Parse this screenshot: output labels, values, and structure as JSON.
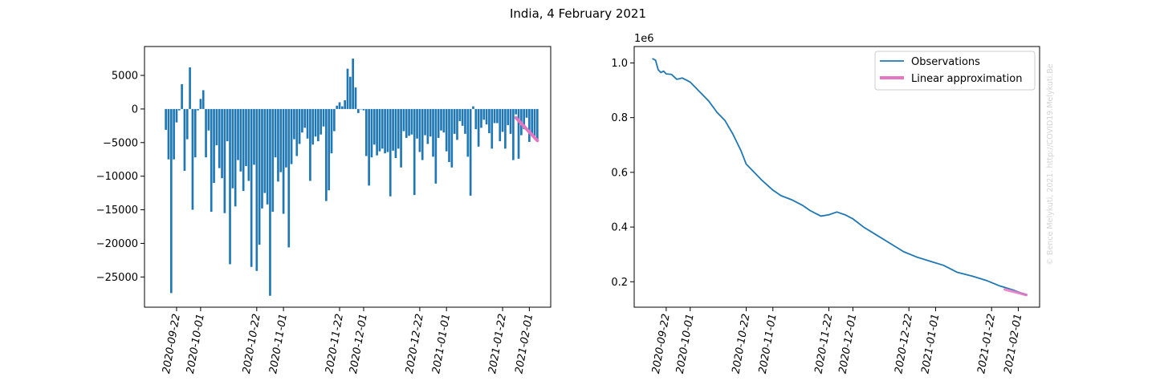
{
  "figure": {
    "title": "India, 4 February 2021",
    "watermark": "© Bence Melykuti, 2021. http://COVID19.Melykuti.Be",
    "watermark_color": "#d3d3d3"
  },
  "chart_data": [
    {
      "type": "bar",
      "title": "",
      "xlabel": "",
      "ylabel": "",
      "x_ticks": [
        "2020-09-22",
        "2020-10-01",
        "2020-10-22",
        "2020-11-01",
        "2020-11-22",
        "2020-12-01",
        "2020-12-22",
        "2021-01-01",
        "2021-01-22",
        "2021-02-01"
      ],
      "y_ticks": [
        "5000",
        "0",
        "−5000",
        "−10000",
        "−15000",
        "−20000",
        "−25000"
      ],
      "xlim": [
        "2020-09-10",
        "2021-02-09"
      ],
      "ylim": [
        -29500,
        9300
      ],
      "grid": false,
      "bar_color": "#1f77b4",
      "dates": [
        "2020-09-18",
        "2020-09-19",
        "2020-09-20",
        "2020-09-21",
        "2020-09-22",
        "2020-09-23",
        "2020-09-24",
        "2020-09-25",
        "2020-09-26",
        "2020-09-27",
        "2020-09-28",
        "2020-09-29",
        "2020-09-30",
        "2020-10-01",
        "2020-10-02",
        "2020-10-03",
        "2020-10-04",
        "2020-10-05",
        "2020-10-06",
        "2020-10-07",
        "2020-10-08",
        "2020-10-09",
        "2020-10-10",
        "2020-10-11",
        "2020-10-12",
        "2020-10-13",
        "2020-10-14",
        "2020-10-15",
        "2020-10-16",
        "2020-10-17",
        "2020-10-18",
        "2020-10-19",
        "2020-10-20",
        "2020-10-21",
        "2020-10-22",
        "2020-10-23",
        "2020-10-24",
        "2020-10-25",
        "2020-10-26",
        "2020-10-27",
        "2020-10-28",
        "2020-10-29",
        "2020-10-30",
        "2020-10-31",
        "2020-11-01",
        "2020-11-02",
        "2020-11-03",
        "2020-11-04",
        "2020-11-05",
        "2020-11-06",
        "2020-11-07",
        "2020-11-08",
        "2020-11-09",
        "2020-11-10",
        "2020-11-11",
        "2020-11-12",
        "2020-11-13",
        "2020-11-14",
        "2020-11-15",
        "2020-11-16",
        "2020-11-17",
        "2020-11-18",
        "2020-11-19",
        "2020-11-20",
        "2020-11-21",
        "2020-11-22",
        "2020-11-23",
        "2020-11-24",
        "2020-11-25",
        "2020-11-26",
        "2020-11-27",
        "2020-11-28",
        "2020-11-29",
        "2020-11-30",
        "2020-12-01",
        "2020-12-02",
        "2020-12-03",
        "2020-12-04",
        "2020-12-05",
        "2020-12-06",
        "2020-12-07",
        "2020-12-08",
        "2020-12-09",
        "2020-12-10",
        "2020-12-11",
        "2020-12-12",
        "2020-12-13",
        "2020-12-14",
        "2020-12-15",
        "2020-12-16",
        "2020-12-17",
        "2020-12-18",
        "2020-12-19",
        "2020-12-20",
        "2020-12-21",
        "2020-12-22",
        "2020-12-23",
        "2020-12-24",
        "2020-12-25",
        "2020-12-26",
        "2020-12-27",
        "2020-12-28",
        "2020-12-29",
        "2020-12-30",
        "2020-12-31",
        "2021-01-01",
        "2021-01-02",
        "2021-01-03",
        "2021-01-04",
        "2021-01-05",
        "2021-01-06",
        "2021-01-07",
        "2021-01-08",
        "2021-01-09",
        "2021-01-10",
        "2021-01-11",
        "2021-01-12",
        "2021-01-13",
        "2021-01-14",
        "2021-01-15",
        "2021-01-16",
        "2021-01-17",
        "2021-01-18",
        "2021-01-19",
        "2021-01-20",
        "2021-01-21",
        "2021-01-22",
        "2021-01-23",
        "2021-01-24",
        "2021-01-25",
        "2021-01-26",
        "2021-01-27",
        "2021-01-28",
        "2021-01-29",
        "2021-01-30",
        "2021-01-31",
        "2021-02-01",
        "2021-02-02",
        "2021-02-03",
        "2021-02-04"
      ],
      "values": [
        -3100,
        -7500,
        -27400,
        -7500,
        -2000,
        -200,
        3700,
        -9200,
        -4500,
        6200,
        -15000,
        -7200,
        -200,
        1500,
        2800,
        -7200,
        -3200,
        -15300,
        -11000,
        -5400,
        -8800,
        -10300,
        -15500,
        -4800,
        -23100,
        -11800,
        -14500,
        -7600,
        -9300,
        -12200,
        -8500,
        -10700,
        -23500,
        -8300,
        -24100,
        -20200,
        -14800,
        -12500,
        -14200,
        -27800,
        -15300,
        -7200,
        -10800,
        -9400,
        -15600,
        -8700,
        -20600,
        -8200,
        -4500,
        -7000,
        -5200,
        -3500,
        -2800,
        -4400,
        -10700,
        -5300,
        -4100,
        -4800,
        -3800,
        -2600,
        -13700,
        -12100,
        -6600,
        -3300,
        500,
        1000,
        400,
        1300,
        6000,
        4800,
        7500,
        3200,
        -600,
        0,
        -200,
        -7000,
        -11400,
        -7200,
        -5300,
        -6900,
        -6300,
        -5900,
        -6600,
        -6400,
        -13000,
        -6200,
        -7300,
        -5900,
        -8700,
        -3300,
        -4300,
        -4000,
        -3800,
        -12800,
        -4400,
        -6400,
        -7600,
        -3900,
        -5200,
        -4100,
        -7100,
        -11100,
        -4300,
        -3200,
        -3500,
        -6300,
        -7900,
        -8700,
        -3700,
        -4600,
        -1800,
        -2500,
        -3700,
        -7100,
        -12900,
        400,
        -3000,
        -5600,
        -2800,
        -1600,
        -2300,
        -3600,
        -5900,
        -2100,
        -2100,
        -4800,
        -3400,
        -5900,
        -2400,
        -3700,
        -7600,
        -800,
        -7400,
        -3900,
        -3000,
        -1300,
        -4900,
        -3700,
        -4000,
        -4700
      ],
      "overlay": {
        "name": "Linear approximation",
        "color": "#e377c2",
        "x": [
          "2021-01-27",
          "2021-02-04"
        ],
        "y": [
          -1300,
          -4700
        ]
      }
    },
    {
      "type": "line",
      "title": "",
      "xlabel": "",
      "ylabel": "",
      "y_multiplier_label": "1e6",
      "x_ticks": [
        "2020-09-22",
        "2020-10-01",
        "2020-10-22",
        "2020-11-01",
        "2020-11-22",
        "2020-12-01",
        "2020-12-22",
        "2021-01-01",
        "2021-01-22",
        "2021-02-01"
      ],
      "y_ticks": [
        "1.0",
        "0.8",
        "0.6",
        "0.4",
        "0.2"
      ],
      "xlim": [
        "2020-09-10",
        "2021-02-09"
      ],
      "ylim": [
        0.107,
        1.06
      ],
      "grid": false,
      "legend_position": "top-right",
      "series": [
        {
          "name": "Observations",
          "color": "#1f77b4",
          "x": [
            "2020-09-17",
            "2020-09-18",
            "2020-09-19",
            "2020-09-20",
            "2020-09-21",
            "2020-09-22",
            "2020-09-24",
            "2020-09-26",
            "2020-09-28",
            "2020-10-01",
            "2020-10-03",
            "2020-10-06",
            "2020-10-08",
            "2020-10-11",
            "2020-10-14",
            "2020-10-17",
            "2020-10-20",
            "2020-10-22",
            "2020-10-25",
            "2020-10-28",
            "2020-11-01",
            "2020-11-04",
            "2020-11-08",
            "2020-11-12",
            "2020-11-15",
            "2020-11-19",
            "2020-11-22",
            "2020-11-25",
            "2020-11-28",
            "2020-12-01",
            "2020-12-05",
            "2020-12-10",
            "2020-12-15",
            "2020-12-20",
            "2020-12-25",
            "2020-12-30",
            "2021-01-04",
            "2021-01-09",
            "2021-01-15",
            "2021-01-20",
            "2021-01-25",
            "2021-01-30",
            "2021-02-04"
          ],
          "y": [
            1.015,
            1.01,
            0.975,
            0.965,
            0.97,
            0.96,
            0.958,
            0.94,
            0.945,
            0.93,
            0.91,
            0.88,
            0.86,
            0.82,
            0.79,
            0.74,
            0.68,
            0.63,
            0.6,
            0.57,
            0.535,
            0.515,
            0.5,
            0.48,
            0.46,
            0.44,
            0.445,
            0.455,
            0.445,
            0.43,
            0.4,
            0.37,
            0.34,
            0.31,
            0.29,
            0.275,
            0.26,
            0.235,
            0.22,
            0.205,
            0.185,
            0.17,
            0.152
          ]
        },
        {
          "name": "Linear approximation",
          "color": "#e377c2",
          "x": [
            "2021-01-27",
            "2021-02-04"
          ],
          "y": [
            0.172,
            0.152
          ]
        }
      ]
    }
  ]
}
